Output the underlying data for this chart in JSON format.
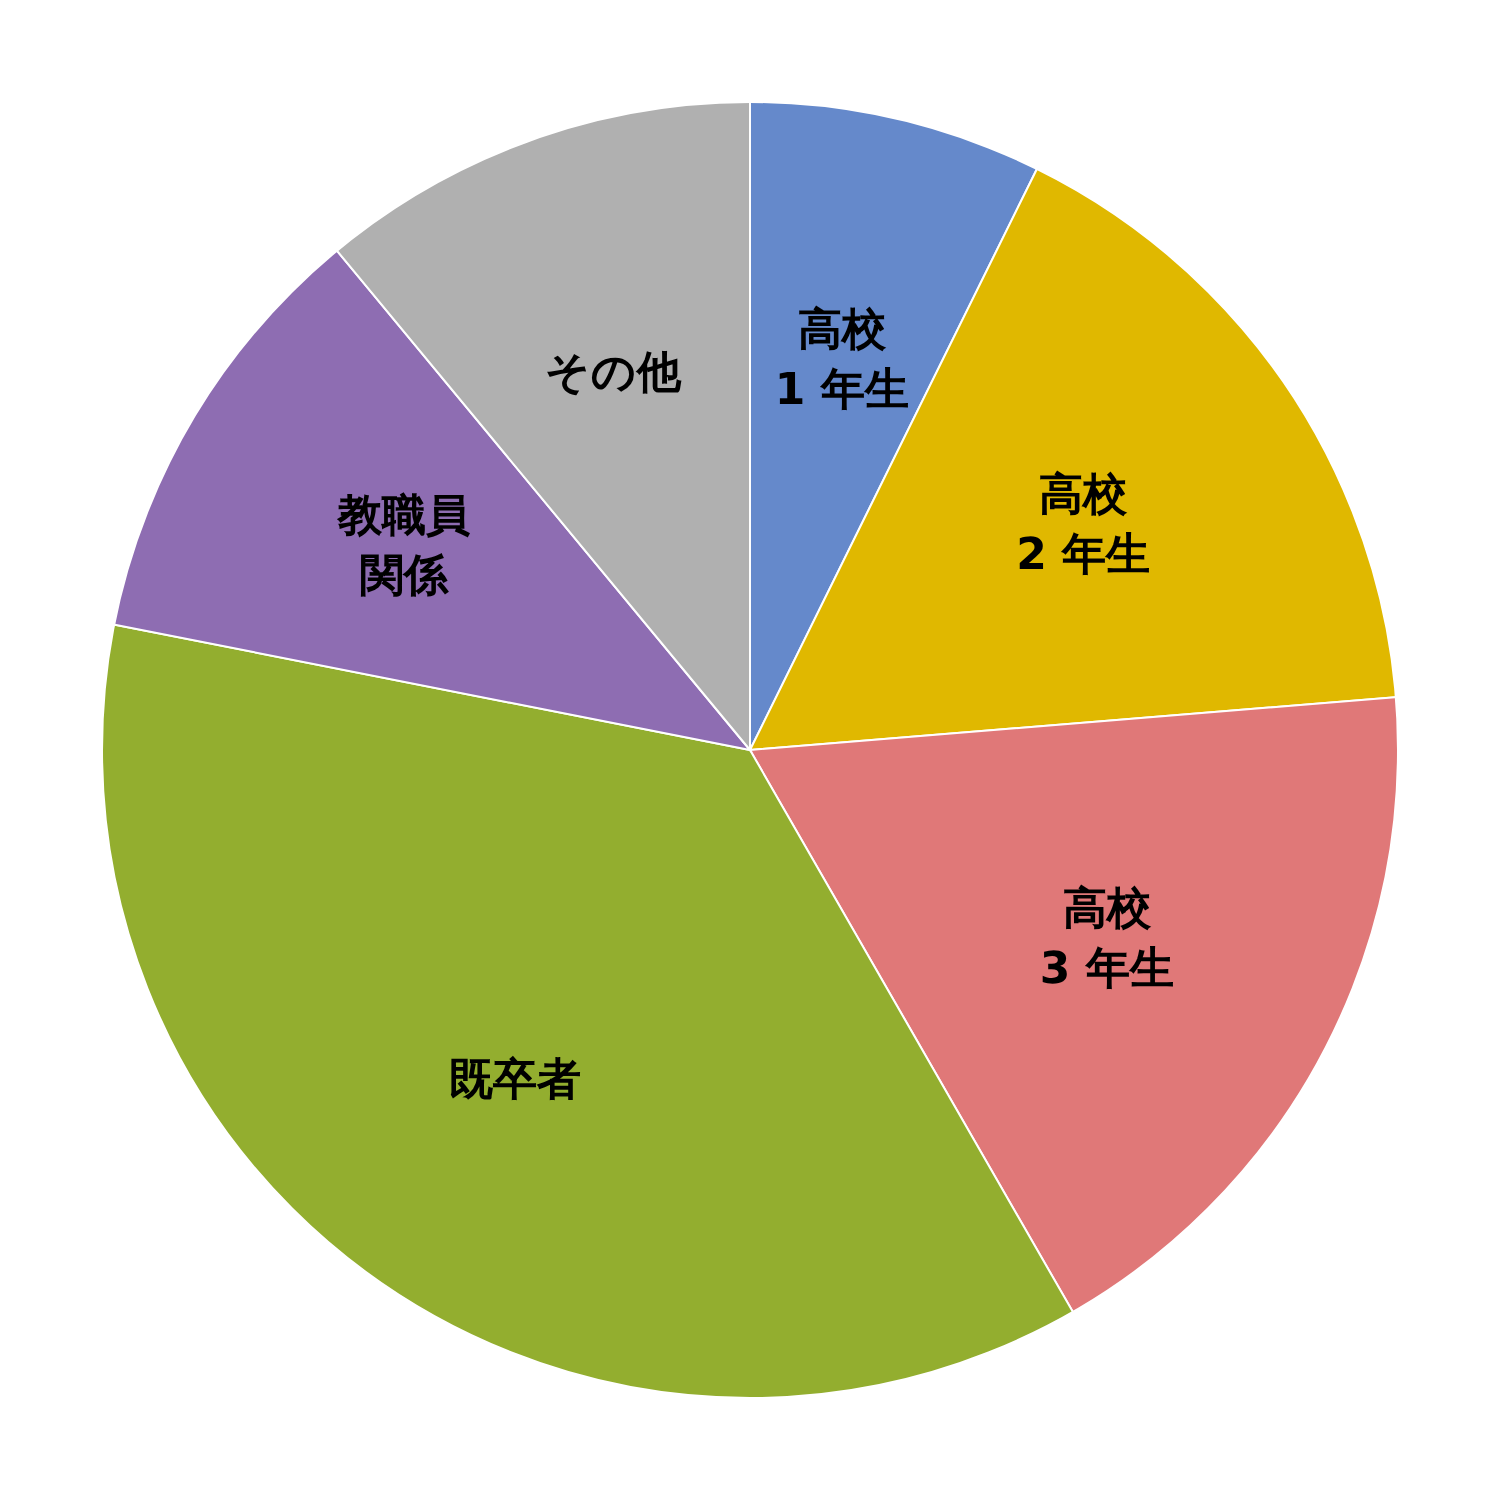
{
  "chart_data": {
    "type": "pie",
    "categories": [
      "高校\n1 年生",
      "高校\n2 年生",
      "高校\n3 年生",
      "既卒者",
      "教職員関係",
      "その他"
    ],
    "values": [
      7.3,
      16.4,
      18.0,
      36.4,
      10.9,
      11.0
    ],
    "colors": [
      "#6589cb",
      "#e0b800",
      "#e07878",
      "#93ae2f",
      "#8e6db2",
      "#b0b0b0"
    ]
  }
}
